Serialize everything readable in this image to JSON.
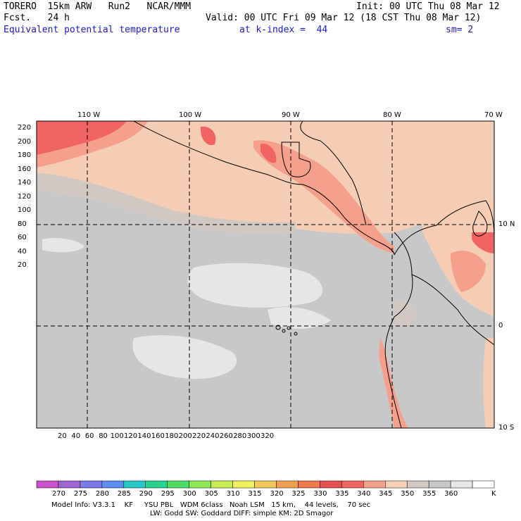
{
  "header": {
    "model": "TORERO  15km ARW   Run2   NCAR/MMM",
    "init": "Init: 00 UTC Thu 08 Mar 12",
    "fcst": "Fcst.   24 h",
    "valid": "Valid: 00 UTC Fri 09 Mar 12 (18 CST Thu 08 Mar 12)",
    "field": "Equivalent potential temperature",
    "level": "at k-index =  44",
    "smooth": "sm= 2"
  },
  "top_axis": [
    "110 W",
    "100 W",
    "90 W",
    "80 W",
    "70 W"
  ],
  "right_axis": [
    "10 N",
    "0",
    "10 S"
  ],
  "left_axis": [
    "220",
    "200",
    "180",
    "160",
    "140",
    "120",
    "100",
    "80",
    "60",
    "40",
    "20"
  ],
  "bottom_axis": [
    "20",
    "40",
    "60",
    "80",
    "100",
    "120",
    "140",
    "160",
    "180",
    "200",
    "220",
    "240",
    "260",
    "280",
    "300",
    "320"
  ],
  "colorbar": {
    "labels": [
      "270",
      "275",
      "280",
      "285",
      "290",
      "295",
      "300",
      "305",
      "310",
      "315",
      "320",
      "325",
      "330",
      "335",
      "340",
      "345",
      "350",
      "355",
      "360"
    ],
    "unit": "K",
    "colors": [
      "#c850c8",
      "#a064d2",
      "#7878e6",
      "#5a8cf0",
      "#28c8c8",
      "#28d28c",
      "#50dc64",
      "#8ce650",
      "#c8ec50",
      "#f0f05a",
      "#f0c85a",
      "#f0a050",
      "#f07850",
      "#e85050",
      "#f06464",
      "#f4a08c",
      "#f4cdb4",
      "#d2c8c3",
      "#c8c8c8",
      "#e6e6e6",
      "#ffffff"
    ]
  },
  "footer": {
    "line1": "Model Info: V3.3.1    KF     YSU PBL   WDM 6class   Noah LSM   15 km,    44 levels,    70 sec",
    "line2": "LW: Godd SW: Goddard DIFF: simple KM: 2D Smagor"
  }
}
